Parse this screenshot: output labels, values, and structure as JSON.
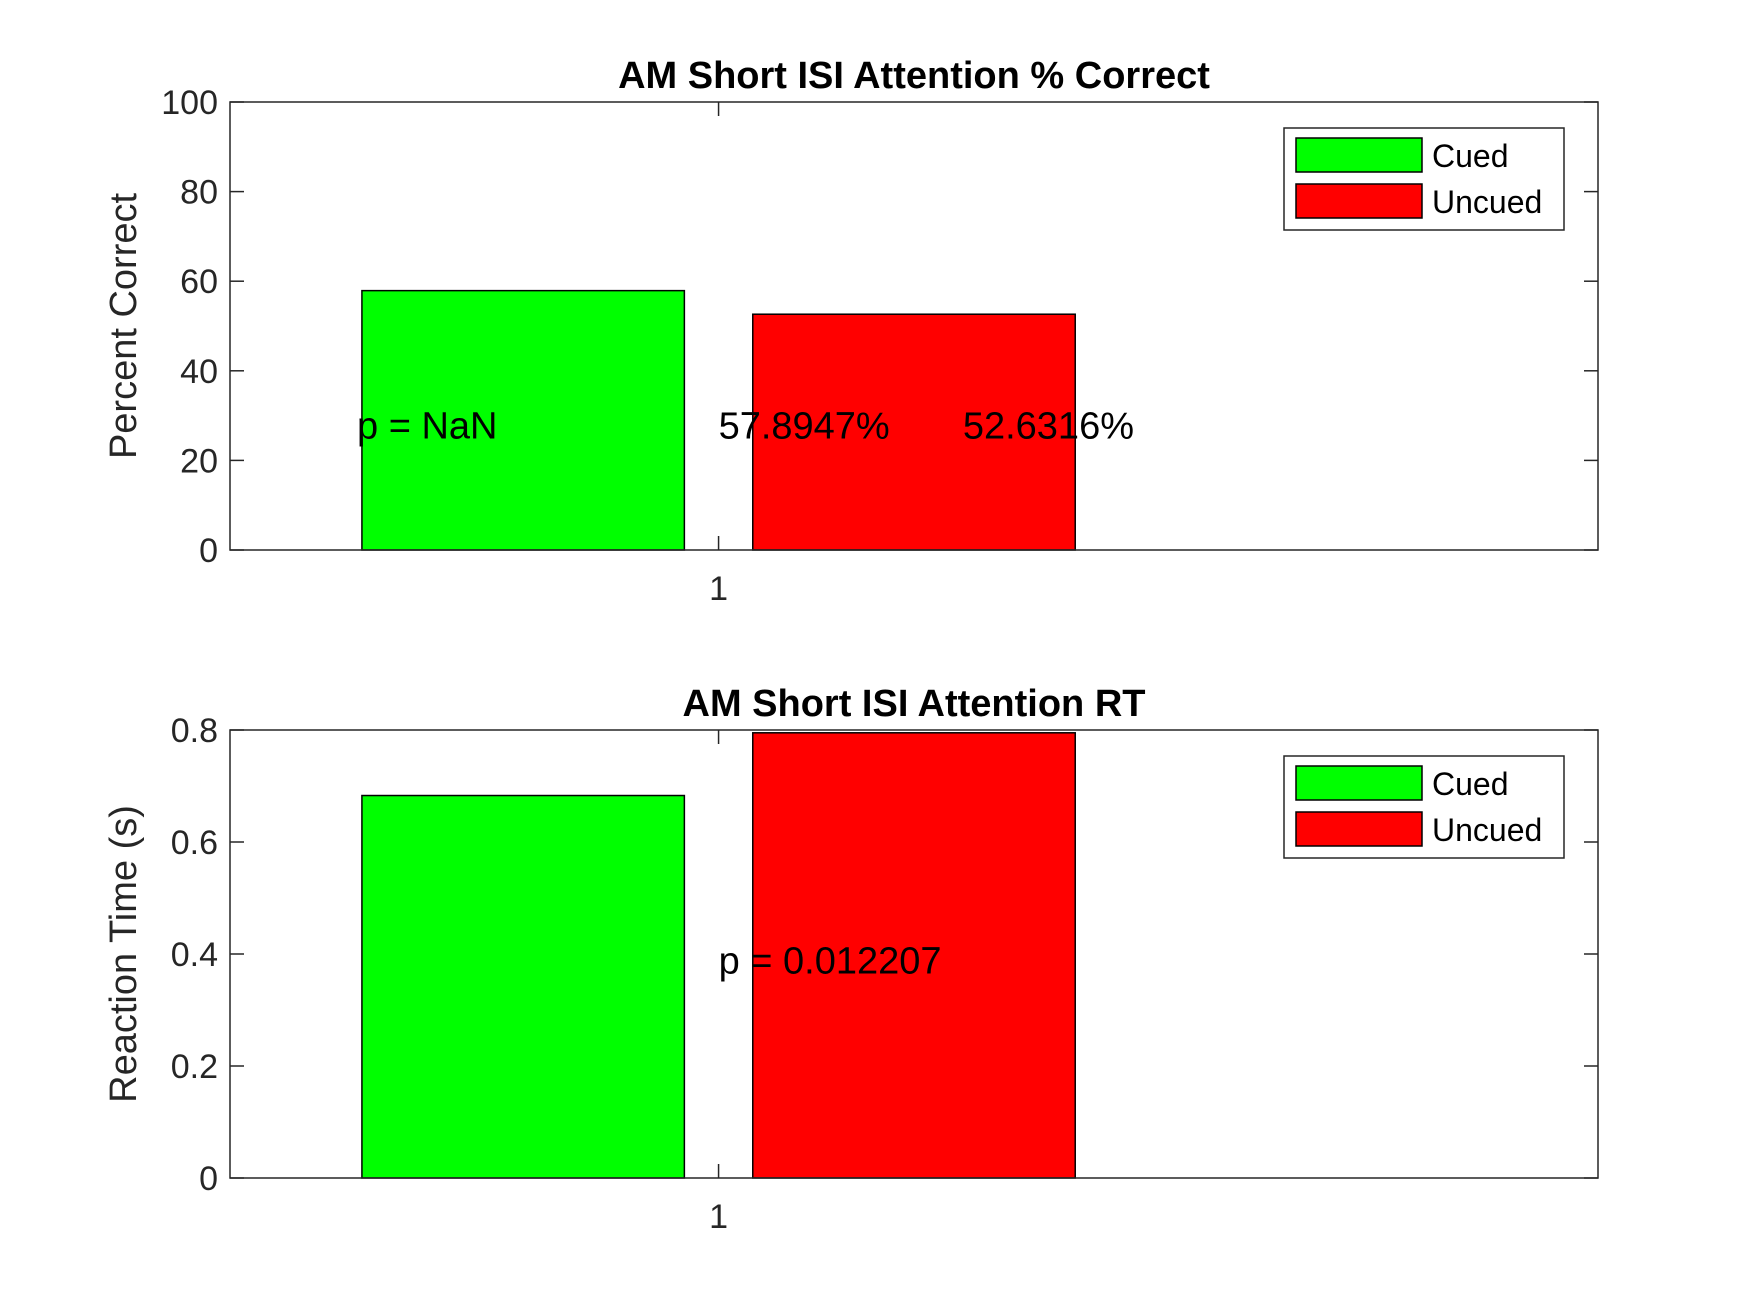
{
  "colors": {
    "cued": "#00ff00",
    "uncued": "#ff0000",
    "axis": "#262626"
  },
  "chart_data": [
    {
      "type": "bar",
      "title": "AM Short ISI Attention % Correct",
      "xlabel": "",
      "ylabel": "Percent Correct",
      "categories": [
        "1"
      ],
      "series": [
        {
          "name": "Cued",
          "values": [
            57.8947
          ]
        },
        {
          "name": "Uncued",
          "values": [
            52.6316
          ]
        }
      ],
      "ylim": [
        0,
        100
      ],
      "yticks": [
        0,
        20,
        40,
        60,
        80,
        100
      ],
      "ytick_labels": [
        "0",
        "20",
        "40",
        "60",
        "80",
        "100"
      ],
      "annotations": [
        {
          "text": "p = NaN",
          "x": 0.63,
          "y": 28
        },
        {
          "text": "57.8947%",
          "x": 1.0,
          "y": 28
        },
        {
          "text": "52.6316%",
          "x": 1.25,
          "y": 28
        }
      ],
      "legend": {
        "position": "top-right",
        "entries": [
          "Cued",
          "Uncued"
        ]
      },
      "grid": false
    },
    {
      "type": "bar",
      "title": "AM Short ISI Attention RT",
      "xlabel": "",
      "ylabel": "Reaction Time (s)",
      "categories": [
        "1"
      ],
      "series": [
        {
          "name": "Cued",
          "values": [
            0.683
          ]
        },
        {
          "name": "Uncued",
          "values": [
            0.795
          ]
        }
      ],
      "ylim": [
        0,
        0.8
      ],
      "yticks": [
        0,
        0.2,
        0.4,
        0.6,
        0.8
      ],
      "ytick_labels": [
        "0",
        "0.2",
        "0.4",
        "0.6",
        "0.8"
      ],
      "annotations": [
        {
          "text": "p = 0.012207",
          "x": 1.0,
          "y": 0.39
        }
      ],
      "legend": {
        "position": "top-right",
        "entries": [
          "Cued",
          "Uncued"
        ]
      },
      "grid": false
    }
  ]
}
